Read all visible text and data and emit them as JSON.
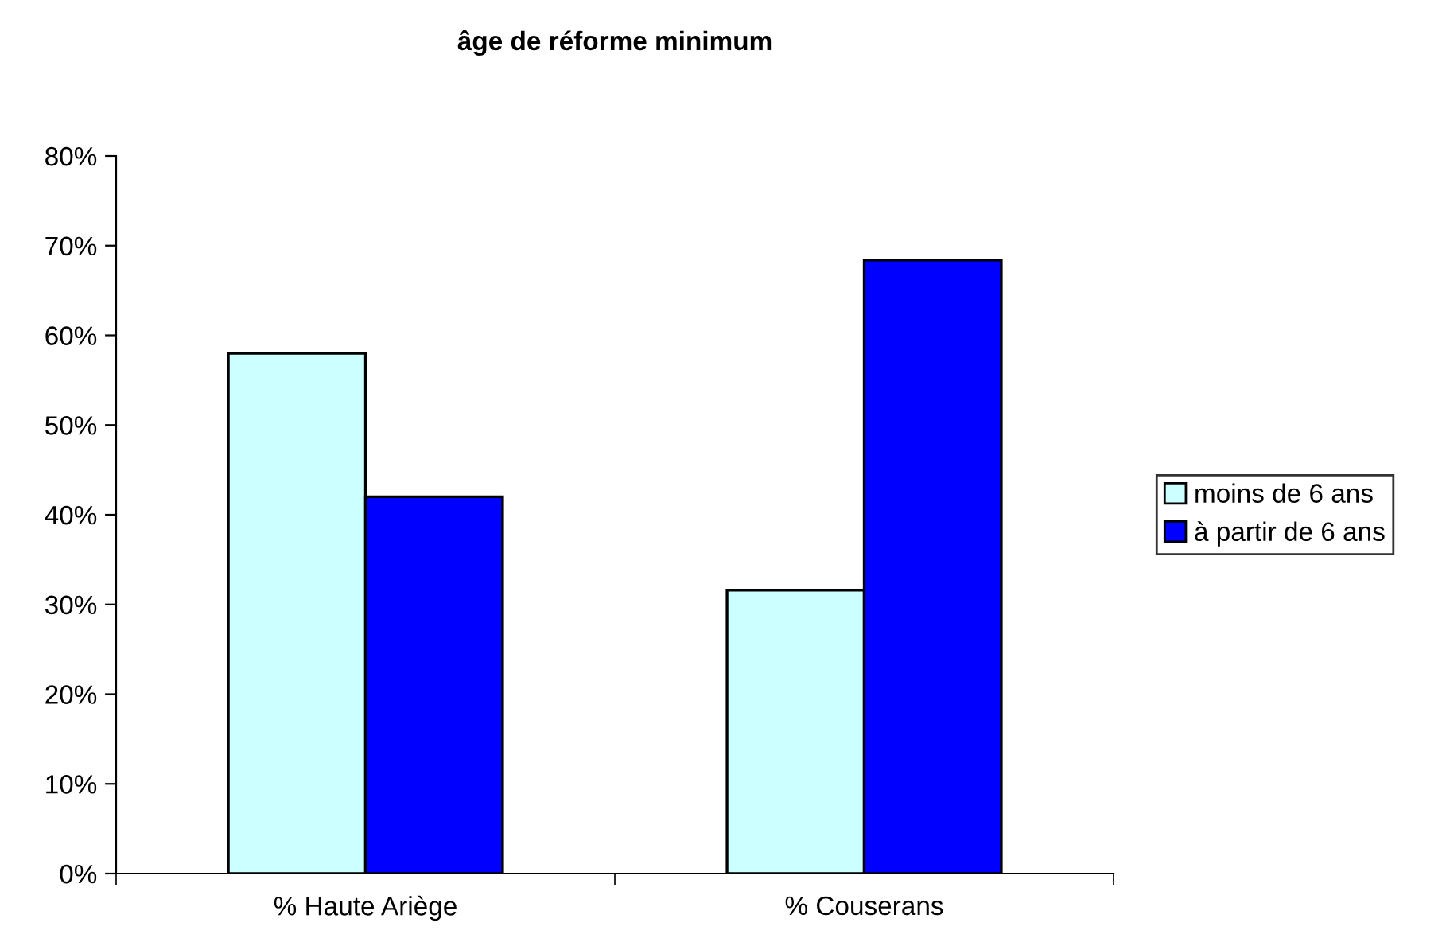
{
  "chart_data": {
    "type": "bar",
    "title": "âge de réforme minimum",
    "categories": [
      "% Haute Ariège",
      "% Couserans"
    ],
    "series": [
      {
        "name": "moins de 6 ans",
        "color": "#ccffff",
        "values": [
          58,
          31.6
        ]
      },
      {
        "name": "à partir de 6 ans",
        "color": "#0000ff",
        "values": [
          42,
          68.4
        ]
      }
    ],
    "ylim": [
      0,
      80
    ],
    "yticks": [
      {
        "value": 0,
        "label": "0%"
      },
      {
        "value": 10,
        "label": "10%"
      },
      {
        "value": 20,
        "label": "20%"
      },
      {
        "value": 30,
        "label": "30%"
      },
      {
        "value": 40,
        "label": "40%"
      },
      {
        "value": 50,
        "label": "50%"
      },
      {
        "value": 60,
        "label": "60%"
      },
      {
        "value": 70,
        "label": "70%"
      },
      {
        "value": 80,
        "label": "80%"
      }
    ],
    "grid": false,
    "legend": "right"
  }
}
